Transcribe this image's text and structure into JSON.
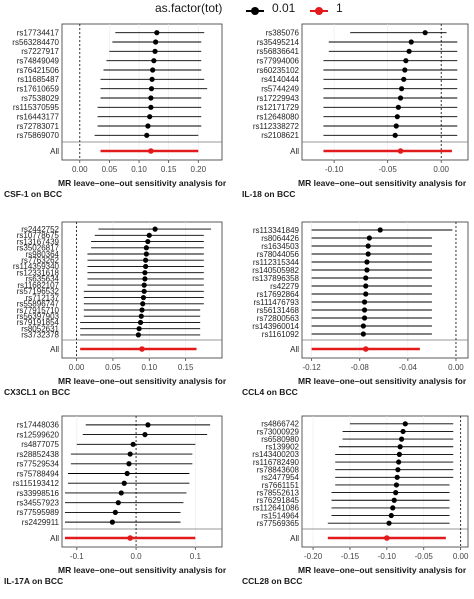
{
  "legend": {
    "title": "as.factor(tot)",
    "items": [
      {
        "label": "0.01",
        "color": "#000000"
      },
      {
        "label": "1",
        "color": "#e31a1c"
      }
    ]
  },
  "colors": {
    "snp": "#000000",
    "all": "#e31a1c",
    "panel_border": "#333333",
    "grid": "#ebebeb"
  },
  "chart_data": [
    {
      "type": "forest",
      "caption_line1": "MR leave–one–out sensitivity analysis for",
      "caption_line2": "CSF-1 on BCC",
      "all_label": "All",
      "xlim": [
        -0.03,
        0.24
      ],
      "x_ticks": [
        0.0,
        0.05,
        0.1,
        0.15,
        0.2
      ],
      "x_tick_labels": [
        "0.00",
        "0.05",
        "0.10",
        "0.15",
        "0.20"
      ],
      "snps": [
        {
          "label": "rs17734417",
          "b": 0.13,
          "lo": 0.06,
          "hi": 0.21
        },
        {
          "label": "rs563284470",
          "b": 0.128,
          "lo": 0.055,
          "hi": 0.205
        },
        {
          "label": "rs7227917",
          "b": 0.127,
          "lo": 0.05,
          "hi": 0.205
        },
        {
          "label": "rs74849049",
          "b": 0.125,
          "lo": 0.045,
          "hi": 0.205
        },
        {
          "label": "rs76421506",
          "b": 0.123,
          "lo": 0.04,
          "hi": 0.205
        },
        {
          "label": "rs11685487",
          "b": 0.122,
          "lo": 0.035,
          "hi": 0.21
        },
        {
          "label": "rs17610659",
          "b": 0.121,
          "lo": 0.035,
          "hi": 0.215
        },
        {
          "label": "rs7538029",
          "b": 0.12,
          "lo": 0.035,
          "hi": 0.205
        },
        {
          "label": "rs115370595",
          "b": 0.12,
          "lo": 0.03,
          "hi": 0.205
        },
        {
          "label": "rs16443177",
          "b": 0.118,
          "lo": 0.03,
          "hi": 0.205
        },
        {
          "label": "rs72783071",
          "b": 0.115,
          "lo": 0.03,
          "hi": 0.205
        },
        {
          "label": "rs75869070",
          "b": 0.113,
          "lo": 0.025,
          "hi": 0.2
        }
      ],
      "all": {
        "b": 0.12,
        "lo": 0.035,
        "hi": 0.2
      }
    },
    {
      "type": "forest",
      "caption_line1": "MR leave–one–out sensitivity analysis for",
      "caption_line2": "IL-18 on BCC",
      "all_label": "All",
      "xlim": [
        -0.13,
        0.025
      ],
      "x_ticks": [
        -0.1,
        -0.05,
        0.0
      ],
      "x_tick_labels": [
        "-0.10",
        "-0.05",
        "0.00"
      ],
      "snps": [
        {
          "label": "rs385076",
          "b": -0.015,
          "lo": -0.085,
          "hi": 0.005
        },
        {
          "label": "rs35495214",
          "b": -0.028,
          "lo": -0.105,
          "hi": 0.015
        },
        {
          "label": "rs56836641",
          "b": -0.03,
          "lo": -0.105,
          "hi": 0.015
        },
        {
          "label": "rs77994006",
          "b": -0.033,
          "lo": -0.11,
          "hi": 0.015
        },
        {
          "label": "rs60235102",
          "b": -0.034,
          "lo": -0.11,
          "hi": 0.015
        },
        {
          "label": "rs4140444",
          "b": -0.035,
          "lo": -0.11,
          "hi": 0.015
        },
        {
          "label": "rs5744249",
          "b": -0.037,
          "lo": -0.11,
          "hi": 0.015
        },
        {
          "label": "rs17229943",
          "b": -0.038,
          "lo": -0.11,
          "hi": 0.015
        },
        {
          "label": "rs12171729",
          "b": -0.04,
          "lo": -0.11,
          "hi": 0.015
        },
        {
          "label": "rs12648080",
          "b": -0.041,
          "lo": -0.11,
          "hi": 0.015
        },
        {
          "label": "rs112338272",
          "b": -0.042,
          "lo": -0.11,
          "hi": 0.015
        },
        {
          "label": "rs2108621",
          "b": -0.043,
          "lo": -0.11,
          "hi": 0.015
        }
      ],
      "all": {
        "b": -0.038,
        "lo": -0.11,
        "hi": 0.01
      }
    },
    {
      "type": "forest",
      "caption_line1": "MR leave–one–out sensitivity analysis for",
      "caption_line2": "CX3CL1 on BCC",
      "all_label": "All",
      "xlim": [
        -0.02,
        0.2
      ],
      "x_ticks": [
        0.0,
        0.05,
        0.1,
        0.15
      ],
      "x_tick_labels": [
        "0.00",
        "0.05",
        "0.10",
        "0.15"
      ],
      "snps": [
        {
          "label": "rs2442752",
          "b": 0.108,
          "lo": 0.03,
          "hi": 0.185
        },
        {
          "label": "rs10778675",
          "b": 0.1,
          "lo": 0.025,
          "hi": 0.175
        },
        {
          "label": "rs13167439",
          "b": 0.098,
          "lo": 0.02,
          "hi": 0.175
        },
        {
          "label": "rs35026817",
          "b": 0.096,
          "lo": 0.02,
          "hi": 0.175
        },
        {
          "label": "rs980364",
          "b": 0.096,
          "lo": 0.015,
          "hi": 0.175
        },
        {
          "label": "rs7763262",
          "b": 0.095,
          "lo": 0.015,
          "hi": 0.175
        },
        {
          "label": "rs114359340",
          "b": 0.095,
          "lo": 0.015,
          "hi": 0.175
        },
        {
          "label": "rs12331618",
          "b": 0.094,
          "lo": 0.015,
          "hi": 0.175
        },
        {
          "label": "rs635634",
          "b": 0.094,
          "lo": 0.015,
          "hi": 0.175
        },
        {
          "label": "rs11682107",
          "b": 0.093,
          "lo": 0.015,
          "hi": 0.175
        },
        {
          "label": "rs57196532",
          "b": 0.093,
          "lo": 0.01,
          "hi": 0.175
        },
        {
          "label": "rs712137",
          "b": 0.092,
          "lo": 0.01,
          "hi": 0.175
        },
        {
          "label": "rs55896747",
          "b": 0.091,
          "lo": 0.01,
          "hi": 0.175
        },
        {
          "label": "rs77915710",
          "b": 0.09,
          "lo": 0.01,
          "hi": 0.17
        },
        {
          "label": "rs56397903",
          "b": 0.089,
          "lo": 0.01,
          "hi": 0.17
        },
        {
          "label": "rs79191854",
          "b": 0.088,
          "lo": 0.005,
          "hi": 0.17
        },
        {
          "label": "rs8052631",
          "b": 0.086,
          "lo": 0.005,
          "hi": 0.17
        },
        {
          "label": "rs3732378",
          "b": 0.085,
          "lo": 0.005,
          "hi": 0.17
        }
      ],
      "all": {
        "b": 0.09,
        "lo": 0.005,
        "hi": 0.165
      }
    },
    {
      "type": "forest",
      "caption_line1": "MR leave–one–out sensitivity analysis for",
      "caption_line2": "CCL4 on BCC",
      "all_label": "All",
      "xlim": [
        -0.128,
        0.01
      ],
      "x_ticks": [
        -0.12,
        -0.08,
        -0.04,
        0.0
      ],
      "x_tick_labels": [
        "-0.12",
        "-0.08",
        "-0.04",
        "0.00"
      ],
      "snps": [
        {
          "label": "rs113341849",
          "b": -0.063,
          "lo": -0.12,
          "hi": -0.003
        },
        {
          "label": "rs8064426",
          "b": -0.072,
          "lo": -0.12,
          "hi": -0.02
        },
        {
          "label": "rs1634503",
          "b": -0.073,
          "lo": -0.12,
          "hi": -0.02
        },
        {
          "label": "rs78044056",
          "b": -0.073,
          "lo": -0.12,
          "hi": -0.02
        },
        {
          "label": "rs112315344",
          "b": -0.074,
          "lo": -0.12,
          "hi": -0.02
        },
        {
          "label": "rs140505982",
          "b": -0.074,
          "lo": -0.12,
          "hi": -0.02
        },
        {
          "label": "rs137896358",
          "b": -0.075,
          "lo": -0.12,
          "hi": -0.02
        },
        {
          "label": "rs42279",
          "b": -0.075,
          "lo": -0.12,
          "hi": -0.02
        },
        {
          "label": "rs17692864",
          "b": -0.075,
          "lo": -0.12,
          "hi": -0.02
        },
        {
          "label": "rs111476793",
          "b": -0.076,
          "lo": -0.12,
          "hi": -0.02
        },
        {
          "label": "rs56131468",
          "b": -0.076,
          "lo": -0.12,
          "hi": -0.02
        },
        {
          "label": "rs72800563",
          "b": -0.076,
          "lo": -0.12,
          "hi": -0.02
        },
        {
          "label": "rs143960014",
          "b": -0.077,
          "lo": -0.12,
          "hi": -0.02
        },
        {
          "label": "rs1161092",
          "b": -0.077,
          "lo": -0.12,
          "hi": -0.02
        }
      ],
      "all": {
        "b": -0.075,
        "lo": -0.12,
        "hi": -0.03
      }
    },
    {
      "type": "forest",
      "caption_line1": "MR leave–one–out sensitivity analysis for",
      "caption_line2": "IL-17A on BCC",
      "all_label": "All",
      "xlim": [
        -0.125,
        0.145
      ],
      "x_ticks": [
        -0.1,
        0.0,
        0.1
      ],
      "x_tick_labels": [
        "-0.1",
        "0.0",
        "0.1"
      ],
      "snps": [
        {
          "label": "rs17448036",
          "b": 0.02,
          "lo": -0.085,
          "hi": 0.125
        },
        {
          "label": "rs12599620",
          "b": 0.015,
          "lo": -0.09,
          "hi": 0.12
        },
        {
          "label": "rs4877075",
          "b": -0.005,
          "lo": -0.1,
          "hi": 0.1
        },
        {
          "label": "rs28852438",
          "b": -0.01,
          "lo": -0.11,
          "hi": 0.095
        },
        {
          "label": "rs77529534",
          "b": -0.012,
          "lo": -0.11,
          "hi": 0.095
        },
        {
          "label": "rs75788494",
          "b": -0.015,
          "lo": -0.115,
          "hi": 0.09
        },
        {
          "label": "rs115193412",
          "b": -0.02,
          "lo": -0.115,
          "hi": 0.09
        },
        {
          "label": "rs33998516",
          "b": -0.025,
          "lo": -0.12,
          "hi": 0.085
        },
        {
          "label": "rs34557923",
          "b": -0.03,
          "lo": -0.12,
          "hi": 0.08
        },
        {
          "label": "rs77595989",
          "b": -0.035,
          "lo": -0.12,
          "hi": 0.075
        },
        {
          "label": "rs2429911",
          "b": -0.04,
          "lo": -0.12,
          "hi": 0.075
        }
      ],
      "all": {
        "b": -0.01,
        "lo": -0.12,
        "hi": 0.1
      }
    },
    {
      "type": "forest",
      "caption_line1": "MR leave–one–out sensitivity analysis for",
      "caption_line2": "CCL28 on BCC",
      "all_label": "All",
      "xlim": [
        -0.215,
        0.01
      ],
      "x_ticks": [
        -0.2,
        -0.15,
        -0.1,
        -0.05,
        0.0
      ],
      "x_tick_labels": [
        "-0.20",
        "-0.15",
        "-0.10",
        "-0.05",
        "0.00"
      ],
      "snps": [
        {
          "label": "rs4866742",
          "b": -0.075,
          "lo": -0.15,
          "hi": -0.01
        },
        {
          "label": "rs73000929",
          "b": -0.078,
          "lo": -0.16,
          "hi": -0.01
        },
        {
          "label": "rs6580980",
          "b": -0.08,
          "lo": -0.16,
          "hi": -0.01
        },
        {
          "label": "rs139902",
          "b": -0.082,
          "lo": -0.165,
          "hi": -0.01
        },
        {
          "label": "rs143400203",
          "b": -0.083,
          "lo": -0.17,
          "hi": -0.01
        },
        {
          "label": "rs116782490",
          "b": -0.084,
          "lo": -0.17,
          "hi": -0.01
        },
        {
          "label": "rs78843608",
          "b": -0.085,
          "lo": -0.17,
          "hi": -0.01
        },
        {
          "label": "rs2477954",
          "b": -0.086,
          "lo": -0.17,
          "hi": -0.01
        },
        {
          "label": "rs7661151",
          "b": -0.087,
          "lo": -0.17,
          "hi": -0.015
        },
        {
          "label": "rs78552613",
          "b": -0.088,
          "lo": -0.175,
          "hi": -0.015
        },
        {
          "label": "rs76291845",
          "b": -0.09,
          "lo": -0.175,
          "hi": -0.015
        },
        {
          "label": "rs112641086",
          "b": -0.092,
          "lo": -0.175,
          "hi": -0.015
        },
        {
          "label": "rs1514964",
          "b": -0.094,
          "lo": -0.175,
          "hi": -0.015
        },
        {
          "label": "rs77569365",
          "b": -0.097,
          "lo": -0.18,
          "hi": -0.015
        }
      ],
      "all": {
        "b": -0.1,
        "lo": -0.18,
        "hi": -0.02
      }
    }
  ]
}
